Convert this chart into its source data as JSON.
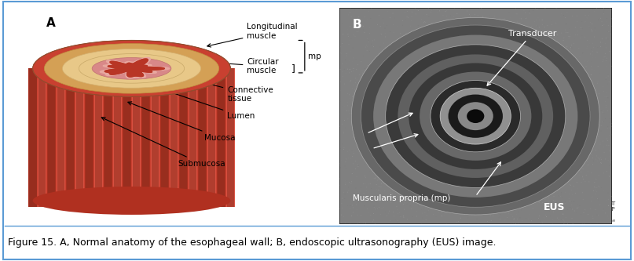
{
  "figure_width": 8.07,
  "figure_height": 3.33,
  "dpi": 100,
  "background_color": "#ffffff",
  "border_color": "#5b9bd5",
  "caption": "Figure 15. A, Normal anatomy of the esophageal wall; B, endoscopic ultrasonography (EUS) image.",
  "caption_fontsize": 9,
  "caption_color": "#000000",
  "panel_A_label": "A",
  "panel_B_label": "B",
  "label_fontsize": 11
}
